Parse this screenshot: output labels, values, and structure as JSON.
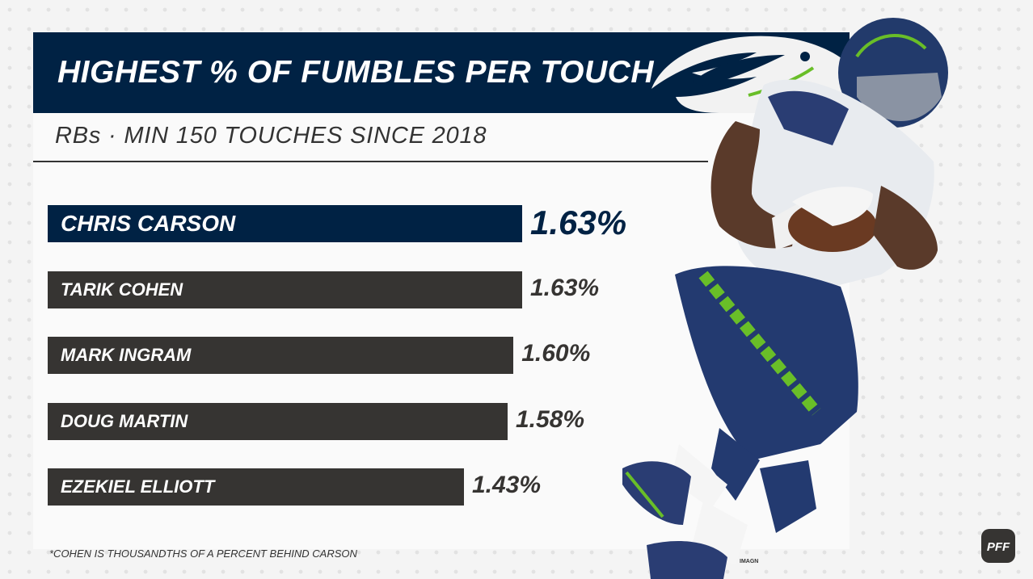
{
  "title": "HIGHEST % OF FUMBLES PER TOUCH",
  "subtitle": "RBs · MIN 150 TOUCHES SINCE 2018",
  "footnote": "*COHEN IS THOUSANDTHS OF A PERCENT BEHIND CARSON",
  "image_credit": "IMAGN",
  "brand": "PFF",
  "colors": {
    "highlight_bar": "#002244",
    "bar": "#363432",
    "seahawks_green": "#69BE28",
    "jersey_navy": "#2a3d73"
  },
  "icons": {
    "team_logo": "seahawks-logo-icon",
    "brand_logo": "pff-logo-icon"
  },
  "chart_data": {
    "type": "bar",
    "orientation": "horizontal",
    "title": "HIGHEST % OF FUMBLES PER TOUCH",
    "subtitle": "RBs · MIN 150 TOUCHES SINCE 2018",
    "categories": [
      "CHRIS CARSON",
      "TARIK COHEN",
      "MARK INGRAM",
      "DOUG MARTIN",
      "EZEKIEL ELLIOTT"
    ],
    "values": [
      1.63,
      1.63,
      1.6,
      1.58,
      1.43
    ],
    "value_labels": [
      "1.63%",
      "1.63%",
      "1.60%",
      "1.58%",
      "1.43%"
    ],
    "highlighted": "CHRIS CARSON",
    "xlabel": "",
    "ylabel": "",
    "grid": false,
    "legend": "none"
  }
}
